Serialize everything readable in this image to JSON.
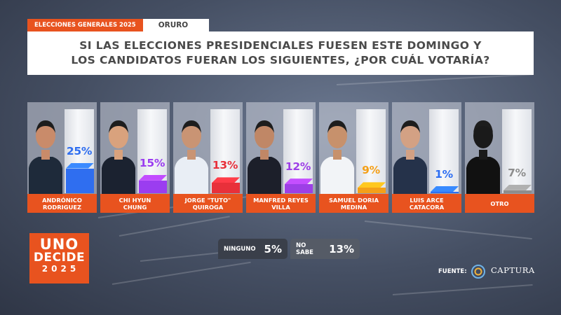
{
  "header": {
    "election_tag": "ELECCIONES GENERALES 2025",
    "region": "ORURO"
  },
  "question": {
    "line1": "SI LAS ELECCIONES PRESIDENCIALES FUESEN ESTE DOMINGO Y",
    "line2": "LOS CANDIDATOS FUERAN LOS SIGUIENTES, ¿POR CUÁL VOTARÍA?"
  },
  "chart_data": {
    "type": "bar",
    "categories": [
      [
        "ANDRÓNICO",
        "RODRIGUEZ"
      ],
      [
        "CHI HYUN",
        "CHUNG"
      ],
      [
        "JORGE \"TUTO\"",
        "QUIROGA"
      ],
      [
        "MANFRED REYES",
        "VILLA"
      ],
      [
        "SAMUEL DORIA",
        "MEDINA"
      ],
      [
        "LUIS ARCE",
        "CATACORA"
      ],
      [
        "OTRO"
      ]
    ],
    "values": [
      25,
      15,
      13,
      12,
      9,
      1,
      7
    ],
    "value_labels": [
      "25%",
      "15%",
      "13%",
      "12%",
      "9%",
      "1%",
      "7%"
    ],
    "colors": [
      "#2f6ef0",
      "#9b3df0",
      "#e8303a",
      "#9d3fe6",
      "#f4a019",
      "#2d6ef2",
      "#8d8d8d"
    ],
    "ylim": [
      0,
      100
    ]
  },
  "extras": [
    {
      "label": "NINGUNO",
      "value": "5%"
    },
    {
      "label": "NO SABE",
      "value": "13%"
    }
  ],
  "logo": {
    "line1": "UNO",
    "line2": "DECIDE",
    "line3": "2025"
  },
  "source": {
    "label": "FUENTE:",
    "name": "CAPTURA"
  }
}
